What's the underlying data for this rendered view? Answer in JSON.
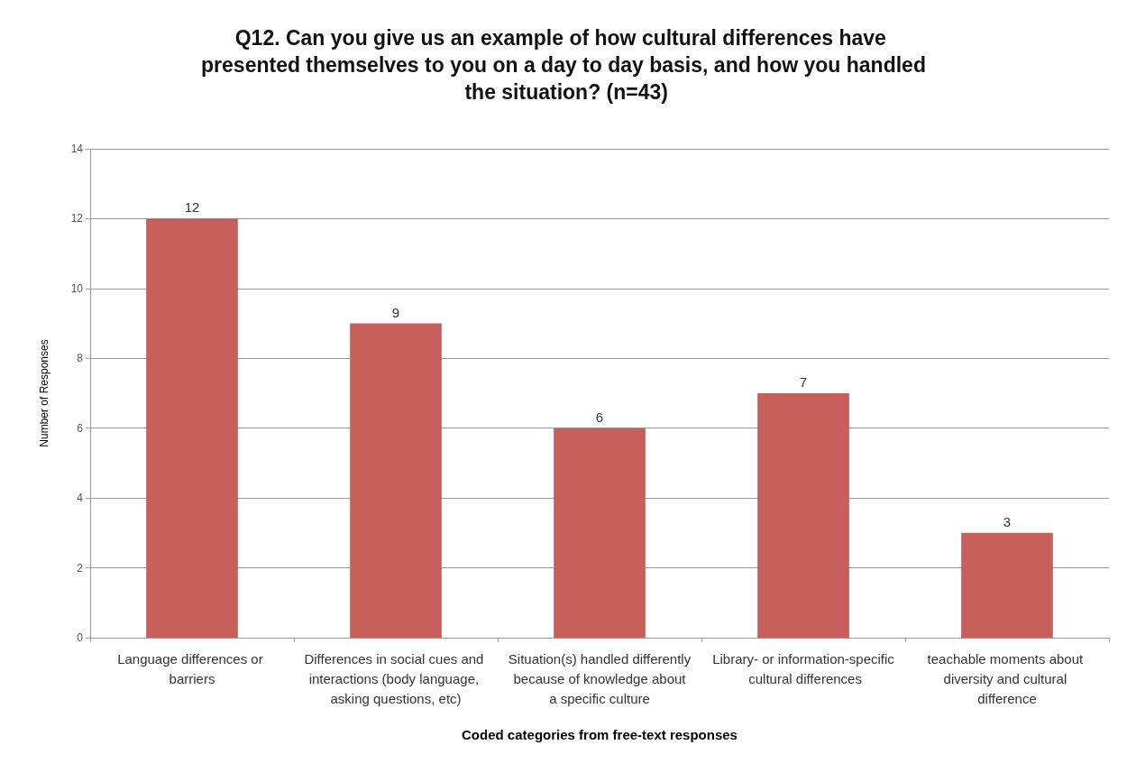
{
  "chart_data": {
    "type": "bar",
    "title": "Q12. Can you give us an example of how cultural differences have presented themselves to you on a day to day basis, and how you handled the situation? (n=43)",
    "xlabel": "Coded categories from free-text responses",
    "ylabel": "Number of Responses",
    "categories": [
      "Language differences or barriers",
      "Differences in social cues and interactions (body language, asking questions, etc)",
      "Situation(s) handled differently because of knowledge about a specific culture",
      "Library- or information-specific cultural differences",
      "teachable moments about diversity and cultural difference"
    ],
    "values": [
      12,
      9,
      6,
      7,
      3
    ],
    "color": "#c7605a",
    "ylim": [
      0,
      14
    ],
    "yticks": [
      0,
      2,
      4,
      6,
      8,
      10,
      12,
      14
    ],
    "grid": "y",
    "data_labels": true
  }
}
